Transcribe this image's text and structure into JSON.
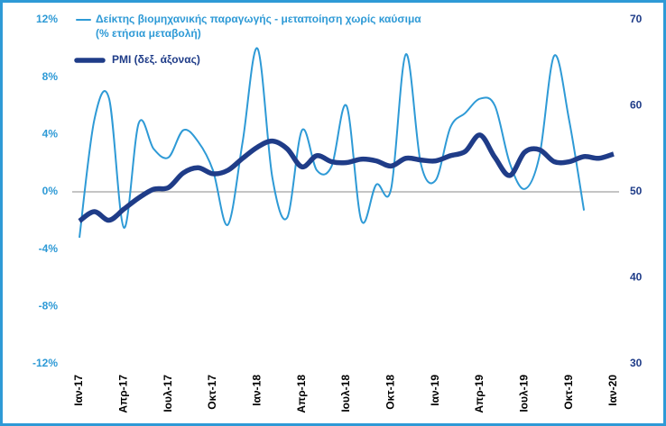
{
  "chart_data": {
    "type": "line",
    "categories": [
      "Ιαν-17",
      null,
      null,
      "Απρ-17",
      null,
      null,
      "Ιουλ-17",
      null,
      null,
      "Οκτ-17",
      null,
      null,
      "Ιαν-18",
      null,
      null,
      "Απρ-18",
      null,
      null,
      "Ιουλ-18",
      null,
      null,
      "Οκτ-18",
      null,
      null,
      "Ιαν-19",
      null,
      null,
      "Απρ-19",
      null,
      null,
      "Ιουλ-19",
      null,
      null,
      "Οκτ-19",
      null,
      null,
      "Ιαν-20"
    ],
    "series": [
      {
        "name": "Δείκτης βιομηχανικής παραγωγής - μεταποίηση χωρίς καύσιμα",
        "unit": "(% ετήσια μεταβολή)",
        "color": "#2e9ad6",
        "values": [
          -3.2,
          5.0,
          6.5,
          -2.5,
          4.8,
          3.0,
          2.4,
          4.3,
          3.5,
          1.5,
          -2.3,
          3.5,
          10.0,
          1.0,
          -1.8,
          4.3,
          1.5,
          1.8,
          6.0,
          -2.0,
          0.5,
          0.2,
          9.6,
          2.0,
          0.8,
          4.5,
          5.5,
          6.5,
          6.0,
          2.0,
          0.2,
          2.5,
          9.5,
          5.0,
          -1.3,
          null,
          null
        ]
      },
      {
        "name": "PMI (δεξ. άξονας)",
        "color": "#1f3c88",
        "axis": "y2",
        "values": [
          46.6,
          47.7,
          46.7,
          48.0,
          49.3,
          50.3,
          50.5,
          52.2,
          52.8,
          52.1,
          52.5,
          53.9,
          55.2,
          55.9,
          55.0,
          52.9,
          54.2,
          53.5,
          53.4,
          53.8,
          53.6,
          53.0,
          53.9,
          53.7,
          53.6,
          54.2,
          54.7,
          56.6,
          54.0,
          51.9,
          54.6,
          54.9,
          53.5,
          53.5,
          54.1,
          53.9,
          54.4
        ]
      }
    ],
    "ylim": [
      -12,
      12
    ],
    "yticks": [
      {
        "value": -12,
        "label": "-12%"
      },
      {
        "value": -8,
        "label": "-8%"
      },
      {
        "value": -4,
        "label": "-4%"
      },
      {
        "value": 0,
        "label": "0%"
      },
      {
        "value": 4,
        "label": "4%"
      },
      {
        "value": 8,
        "label": "8%"
      },
      {
        "value": 12,
        "label": "12%"
      }
    ],
    "y2lim": [
      30,
      70
    ],
    "y2ticks": [
      30,
      40,
      50,
      60,
      70
    ],
    "legend": "top-left"
  }
}
